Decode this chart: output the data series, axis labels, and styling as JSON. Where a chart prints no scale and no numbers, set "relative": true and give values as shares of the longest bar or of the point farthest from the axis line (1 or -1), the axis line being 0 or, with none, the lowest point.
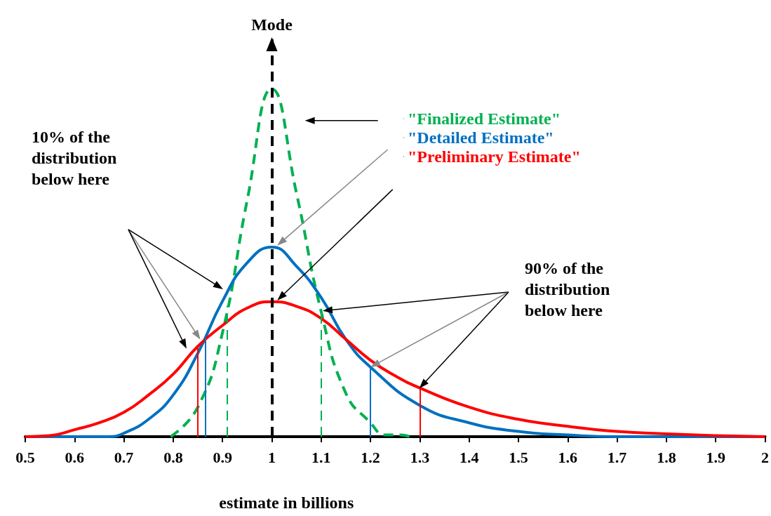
{
  "chart_data": {
    "type": "line",
    "relative": true,
    "xlabel": "estimate in billions",
    "xlim": [
      0.5,
      2
    ],
    "xticks": [
      0.5,
      0.6,
      0.7,
      0.8,
      0.9,
      1,
      1.1,
      1.2,
      1.3,
      1.4,
      1.5,
      1.6,
      1.7,
      1.8,
      1.9,
      2
    ],
    "legend": "top right",
    "marker": "none",
    "grid": false,
    "tick_labels": "x",
    "series": [
      {
        "name": "\"Finalized Estimate\"",
        "color": "#00b050",
        "line_style": "dashed",
        "x": [
          0.795,
          0.85,
          0.9,
          0.95,
          1,
          1.05,
          1.1,
          1.15,
          1.2,
          1.23,
          1.26,
          1.28
        ],
        "values": [
          0,
          0.085,
          0.3,
          0.68,
          1,
          0.7,
          0.36,
          0.125,
          0.04,
          0.005,
          0.005,
          0
        ]
      },
      {
        "name": "\"Detailed Estimate\"",
        "color": "#0070c0",
        "line_style": "solid",
        "x": [
          0.5,
          0.67,
          0.7,
          0.75,
          0.8,
          0.85,
          0.9,
          0.95,
          1,
          1.05,
          1.1,
          1.15,
          1.2,
          1.3,
          1.4,
          1.5,
          1.6,
          1.7,
          2
        ],
        "values": [
          0,
          0,
          0.01,
          0.05,
          0.12,
          0.24,
          0.39,
          0.5,
          0.545,
          0.49,
          0.4,
          0.28,
          0.2,
          0.09,
          0.04,
          0.015,
          0.005,
          0,
          0
        ]
      },
      {
        "name": "\"Preliminary Estimate\"",
        "color": "#ff0000",
        "line_style": "solid",
        "x": [
          0.5,
          0.55,
          0.6,
          0.65,
          0.7,
          0.75,
          0.8,
          0.85,
          0.9,
          0.95,
          1,
          1.05,
          1.1,
          1.15,
          1.2,
          1.25,
          1.3,
          1.4,
          1.5,
          1.6,
          1.7,
          1.8,
          1.9,
          2
        ],
        "values": [
          0,
          0.003,
          0.02,
          0.04,
          0.07,
          0.12,
          0.18,
          0.26,
          0.32,
          0.37,
          0.388,
          0.375,
          0.34,
          0.28,
          0.22,
          0.175,
          0.14,
          0.085,
          0.05,
          0.03,
          0.015,
          0.008,
          0.003,
          0
        ]
      }
    ],
    "ref_lines": [
      {
        "axis": "x",
        "value": 1,
        "label": "Mode",
        "color": "#000000",
        "line_style": "dashed"
      },
      {
        "axis": "x",
        "value": 0.85,
        "color": "#ff0000",
        "line_style": "solid"
      },
      {
        "axis": "x",
        "value": 1.3,
        "color": "#ff0000",
        "line_style": "solid"
      },
      {
        "axis": "x",
        "value": 0.865,
        "color": "#0070c0",
        "line_style": "solid"
      },
      {
        "axis": "x",
        "value": 1.2,
        "color": "#0070c0",
        "line_style": "solid"
      },
      {
        "axis": "x",
        "value": 0.91,
        "color": "#00b050",
        "line_style": "dashed"
      },
      {
        "axis": "x",
        "value": 1.1,
        "color": "#00b050",
        "line_style": "dashed"
      }
    ],
    "annotations": [
      "10% of the distribution below here",
      "90% of the distribution below here"
    ]
  }
}
